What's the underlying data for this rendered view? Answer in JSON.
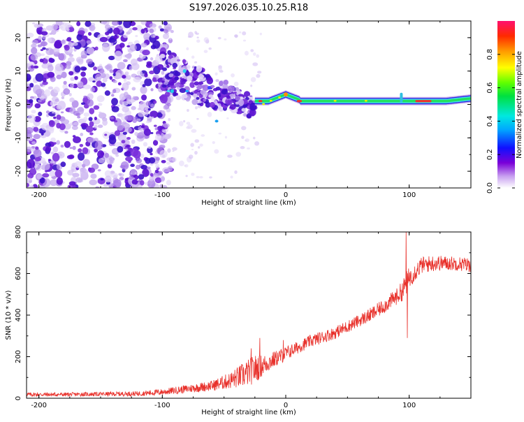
{
  "title": "S197.2026.035.10.25.R18",
  "colors": {
    "snr_line": "#e8302a",
    "speckle_dark": "#5a10d8",
    "speckle_light": "#d8c8f4",
    "band_green": "#22e060",
    "band_cyan": "#40e0f0",
    "band_red": "#f03030"
  },
  "chart_data": [
    {
      "type": "heatmap",
      "name": "spectrogram",
      "xlabel": "Height of straight line (km)",
      "ylabel": "Frequency (Hz)",
      "xlim": [
        -210,
        150
      ],
      "ylim": [
        -25,
        25
      ],
      "x_ticks": [
        -200,
        -100,
        0,
        100
      ],
      "x_tick_labels": [
        "-200",
        "-100",
        "0",
        "100"
      ],
      "y_ticks": [
        -20,
        -10,
        0,
        10,
        20
      ],
      "y_tick_labels": [
        "-20",
        "-10",
        "0",
        "10",
        "20"
      ],
      "colorbar": {
        "label": "Normalized spectral amplitude",
        "range": [
          0,
          1
        ],
        "ticks": [
          0,
          0.2,
          0.4,
          0.6,
          0.8
        ],
        "tick_labels": [
          "0.0",
          "0.2",
          "0.4",
          "0.6",
          "0.8"
        ]
      },
      "features": [
        {
          "description": "diffuse noise speckle",
          "x_range": [
            -210,
            -100
          ],
          "y_range": [
            -25,
            25
          ]
        },
        {
          "description": "converging speckle cluster",
          "x_range": [
            -100,
            -25
          ],
          "y_range": [
            -8,
            17
          ]
        },
        {
          "description": "carrier line",
          "x_range": [
            -25,
            150
          ],
          "frequency_hz": 1,
          "peak_x": 0,
          "peak_frequency_hz": 3
        }
      ]
    },
    {
      "type": "line",
      "name": "snr",
      "xlabel": "Height of straight line (km)",
      "ylabel": "SNR (10 * v/v)",
      "xlim": [
        -210,
        150
      ],
      "ylim": [
        0,
        800
      ],
      "x_ticks": [
        -200,
        -100,
        0,
        100
      ],
      "x_tick_labels": [
        "-200",
        "-100",
        "0",
        "100"
      ],
      "y_ticks": [
        0,
        200,
        400,
        600,
        800
      ],
      "y_tick_labels": [
        "0",
        "200",
        "400",
        "600",
        "800"
      ],
      "series": [
        {
          "name": "SNR",
          "x": [
            -210,
            -180,
            -150,
            -120,
            -100,
            -80,
            -60,
            -45,
            -35,
            -25,
            -18,
            -10,
            0,
            10,
            20,
            30,
            40,
            50,
            60,
            70,
            80,
            90,
            95,
            98,
            100,
            105,
            110,
            120,
            130,
            140,
            150
          ],
          "y": [
            18,
            18,
            20,
            22,
            30,
            45,
            60,
            85,
            110,
            140,
            160,
            185,
            215,
            245,
            275,
            295,
            315,
            345,
            375,
            405,
            445,
            490,
            520,
            560,
            580,
            610,
            640,
            650,
            650,
            648,
            640
          ],
          "noise_amplitude": [
            10,
            10,
            10,
            12,
            15,
            20,
            25,
            40,
            60,
            70,
            50,
            40,
            35,
            30,
            30,
            30,
            30,
            30,
            30,
            35,
            35,
            40,
            50,
            60,
            50,
            45,
            40,
            40,
            35,
            35,
            35
          ],
          "spikes": [
            {
              "x": -21,
              "y": 290
            },
            {
              "x": -28,
              "y": 240
            },
            {
              "x": -2,
              "y": 280
            },
            {
              "x": 97.5,
              "y": 800
            },
            {
              "x": 98.5,
              "y": 290
            }
          ]
        }
      ]
    }
  ]
}
